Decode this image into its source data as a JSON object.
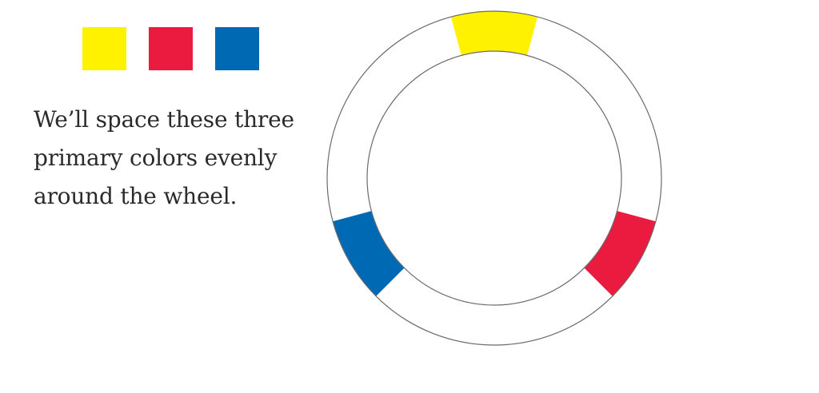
{
  "colors": {
    "yellow": "#FFF200",
    "red": "#EA1B3F",
    "blue": "#0069B4",
    "ring_stroke": "#6b6b6b"
  },
  "swatches": [
    {
      "name": "yellow",
      "color": "#FFF200"
    },
    {
      "name": "red",
      "color": "#EA1B3F"
    },
    {
      "name": "blue",
      "color": "#0069B4"
    }
  ],
  "caption": {
    "lines": [
      "We’ll space these three",
      "primary colors evenly",
      "around the wheel."
    ]
  },
  "wheel": {
    "segments": [
      {
        "name": "yellow",
        "color": "#FFF200",
        "angle_deg": 0
      },
      {
        "name": "red",
        "color": "#EA1B3F",
        "angle_deg": 120
      },
      {
        "name": "blue",
        "color": "#0069B4",
        "angle_deg": 240
      }
    ],
    "segment_span_deg": 30
  }
}
